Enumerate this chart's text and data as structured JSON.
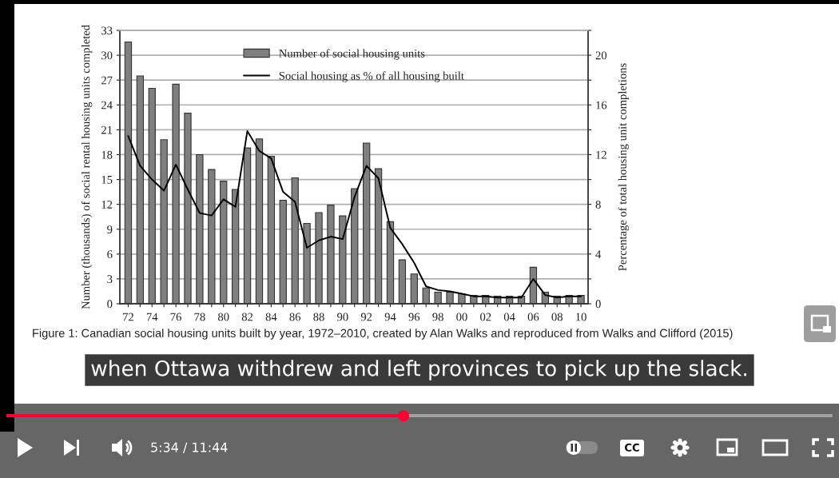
{
  "chart_data": {
    "type": "bar",
    "categories": [
      "72",
      null,
      "74",
      null,
      "76",
      null,
      "78",
      null,
      "80",
      null,
      "82",
      null,
      "84",
      null,
      "86",
      null,
      "88",
      null,
      "90",
      null,
      "92",
      null,
      "94",
      null,
      "96",
      null,
      "98",
      null,
      "00",
      null,
      "02",
      null,
      "04",
      null,
      "06",
      null,
      "08",
      null,
      "10"
    ],
    "series": [
      {
        "name": "Number of social housing units",
        "color": "#7f7f7f",
        "values": [
          31.6,
          27.5,
          26.0,
          19.8,
          26.5,
          23.0,
          18.0,
          16.2,
          14.8,
          13.8,
          18.8,
          19.9,
          17.8,
          12.5,
          15.2,
          9.7,
          11.0,
          11.9,
          10.6,
          13.9,
          19.4,
          16.3,
          9.9,
          5.3,
          3.6,
          1.9,
          1.4,
          1.4,
          1.2,
          1.0,
          1.0,
          0.9,
          0.9,
          0.9,
          4.4,
          1.4,
          0.9,
          1.0,
          1.0
        ]
      },
      {
        "name": "Social housing as % of all housing built",
        "type": "line",
        "axis": "y2",
        "color": "#000000",
        "values": [
          13.5,
          11.1,
          10.0,
          9.1,
          11.2,
          9.2,
          7.3,
          7.1,
          8.4,
          7.8,
          13.9,
          12.3,
          11.7,
          9.0,
          8.2,
          4.5,
          5.1,
          5.4,
          5.2,
          8.6,
          11.1,
          10.1,
          6.1,
          4.8,
          3.3,
          1.4,
          1.1,
          1.0,
          0.8,
          0.6,
          0.6,
          0.5,
          0.5,
          0.5,
          2.0,
          0.7,
          0.5,
          0.6,
          0.6
        ]
      }
    ],
    "ylabel": "Number (thousands) of social rental housing units completed",
    "y2label": "Percentage of total housing unit completions",
    "ylim": [
      0,
      33
    ],
    "yticks": [
      0,
      3,
      6,
      9,
      12,
      15,
      18,
      21,
      24,
      27,
      30,
      33
    ],
    "y2lim": [
      0,
      22
    ],
    "y2ticks": [
      0,
      {
        "value": 2,
        "label": null
      },
      4,
      {
        "value": 6,
        "label": null
      },
      8,
      {
        "value": 10,
        "label": null
      },
      12,
      {
        "value": 14,
        "label": null
      },
      16,
      {
        "value": 18,
        "label": null
      },
      20,
      {
        "value": 22,
        "label": null
      }
    ],
    "grid": "y",
    "legend": "top",
    "annotations": [
      "Figure 1: Canadian social housing units built by year, 1972–2010, created by Alan Walks and reproduced from Walks and Clifford (2015)",
      "when Ottawa withdrew and left provinces to pick up the slack.",
      "5:34 / 11:44",
      "CC"
    ]
  }
}
